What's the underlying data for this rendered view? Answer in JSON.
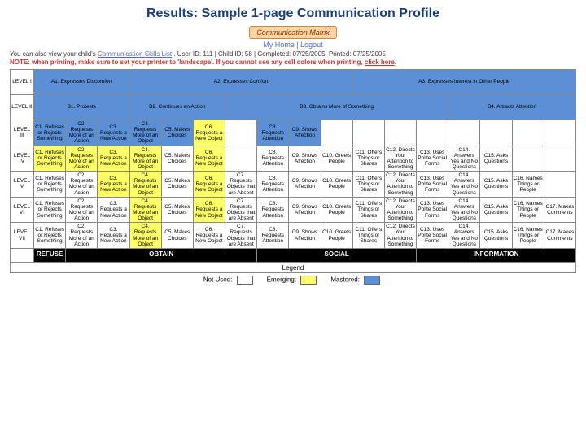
{
  "title": "Results: Sample 1-page Communication Profile",
  "logo": "Communication Matrix",
  "top_links": "My Home | Logout",
  "info_line_prefix": "You can also view your child's ",
  "info_line_link": "Communication Skills List",
  "info_line_suffix": ".  User ID: 111 | Child ID: 58 | Completed: 07/25/2005.  Printed: 07/25/2005",
  "note_prefix": "NOTE: when printing, make sure to set your printer to 'landscape'. If you cannot see any cell colors when printing, ",
  "note_link": "click here",
  "colors": {
    "blue": "#5b8fd6",
    "yellow": "#ffff66",
    "white": "#ffffff",
    "header_bg": "#000000",
    "header_fg": "#ffffff",
    "border": "#888888"
  },
  "row_labels": [
    "LEVEL I",
    "LEVEL II",
    "LEVEL III",
    "LEVEL IV",
    "LEVEL V",
    "LEVEL VI",
    "LEVEL VII"
  ],
  "category_headers": [
    "REFUSE",
    "OBTAIN",
    "SOCIAL",
    "INFORMATION"
  ],
  "category_spans": [
    1,
    6,
    5,
    5
  ],
  "legend_title": "Legend",
  "legend": {
    "not_used": "Not Used:",
    "emerging": "Emerging:",
    "mastered": "Mastered:"
  },
  "cells": {
    "r1": [
      {
        "span": 3,
        "cls": "blue",
        "t": "A1. Expresses Discomfort"
      },
      {
        "span": 7,
        "cls": "blue",
        "t": "A2. Expresses Comfort"
      },
      {
        "span": 7,
        "cls": "blue",
        "t": "A3. Expresses Interest in Other People"
      }
    ],
    "r2": [
      {
        "span": 3,
        "cls": "blue",
        "t": "B1. Protests"
      },
      {
        "span": 3,
        "cls": "blue",
        "t": "B2. Continues an Action"
      },
      {
        "span": 7,
        "cls": "blue",
        "t": "B3. Obtains More of Something"
      },
      {
        "span": 4,
        "cls": "blue",
        "t": "B4. Attracts Attention"
      }
    ],
    "r3": [
      {
        "cls": "blue",
        "t": "C1. Refuses or Rejects Something"
      },
      {
        "cls": "blue",
        "t": "C2. Requests More of an Action"
      },
      {
        "cls": "blue",
        "t": "C3. Requests a New Action"
      },
      {
        "cls": "blue",
        "t": "C4. Requests More of an Object"
      },
      {
        "cls": "blue",
        "t": "C5. Makes Choices"
      },
      {
        "cls": "yellow",
        "t": "C6. Requests a New Object"
      },
      {
        "cls": "empty",
        "t": ""
      },
      {
        "cls": "blue",
        "t": "C8. Requests Attention"
      },
      {
        "cls": "blue",
        "t": "C9. Shows Affection"
      }
    ],
    "r4": [
      {
        "cls": "yellow",
        "t": "C1. Refuses or Rejects Something"
      },
      {
        "cls": "yellow",
        "t": "C2. Requests More of an Action"
      },
      {
        "cls": "yellow",
        "t": "C3. Requests a New Action"
      },
      {
        "cls": "yellow",
        "t": "C4. Requests More of an Object"
      },
      {
        "cls": "white",
        "t": "C5. Makes Choices"
      },
      {
        "cls": "yellow",
        "t": "C6. Requests a New Object"
      },
      {
        "cls": "empty",
        "t": ""
      },
      {
        "cls": "white",
        "t": "C8. Requests Attention"
      },
      {
        "cls": "white",
        "t": "C9. Shows Affection"
      },
      {
        "cls": "white",
        "t": "C10. Greets People"
      },
      {
        "cls": "white",
        "t": "C11. Offers Things or Shares"
      },
      {
        "cls": "white",
        "t": "C12. Directs Your Attention to Something"
      },
      {
        "cls": "white",
        "t": "C13. Uses Polite Social Forms"
      },
      {
        "cls": "white",
        "t": "C14. Answers Yes and No Questions"
      },
      {
        "cls": "white",
        "t": "C15. Asks Questions"
      }
    ],
    "r5": [
      {
        "cls": "white",
        "t": "C1. Refuses or Rejects Something"
      },
      {
        "cls": "white",
        "t": "C2. Requests More of an Action"
      },
      {
        "cls": "yellow",
        "t": "C3. Requests a New Action"
      },
      {
        "cls": "yellow",
        "t": "C4. Requests More of an Object"
      },
      {
        "cls": "white",
        "t": "C5. Makes Choices"
      },
      {
        "cls": "yellow",
        "t": "C6. Requests a New Object"
      },
      {
        "cls": "white",
        "t": "C7. Requests Objects that are Absent"
      },
      {
        "cls": "white",
        "t": "C8. Requests Attention"
      },
      {
        "cls": "white",
        "t": "C9. Shows Affection"
      },
      {
        "cls": "white",
        "t": "C10. Greets People"
      },
      {
        "cls": "white",
        "t": "C11. Offers Things or Shares"
      },
      {
        "cls": "white",
        "t": "C12. Directs Your Attention to Something"
      },
      {
        "cls": "white",
        "t": "C13. Uses Polite Social Forms"
      },
      {
        "cls": "white",
        "t": "C14. Answers Yes and No Questions"
      },
      {
        "cls": "white",
        "t": "C15. Asks Questions"
      },
      {
        "cls": "white",
        "t": "C16. Names Things or People"
      }
    ],
    "r6": [
      {
        "cls": "white",
        "t": "C1. Refuses or Rejects Something"
      },
      {
        "cls": "white",
        "t": "C2. Requests More of an Action"
      },
      {
        "cls": "white",
        "t": "C3. Requests a New Action"
      },
      {
        "cls": "yellow",
        "t": "C4. Requests More of an Object"
      },
      {
        "cls": "white",
        "t": "C5. Makes Choices"
      },
      {
        "cls": "yellow",
        "t": "C6. Requests a New Object"
      },
      {
        "cls": "white",
        "t": "C7. Requests Objects that are Absent"
      },
      {
        "cls": "white",
        "t": "C8. Requests Attention"
      },
      {
        "cls": "white",
        "t": "C9. Shows Affection"
      },
      {
        "cls": "white",
        "t": "C10. Greets People"
      },
      {
        "cls": "white",
        "t": "C11. Offers Things or Shares"
      },
      {
        "cls": "white",
        "t": "C12. Directs Your Attention to Something"
      },
      {
        "cls": "white",
        "t": "C13. Uses Polite Social Forms"
      },
      {
        "cls": "white",
        "t": "C14. Answers Yes and No Questions"
      },
      {
        "cls": "white",
        "t": "C15. Asks Questions"
      },
      {
        "cls": "white",
        "t": "C16. Names Things or People"
      },
      {
        "cls": "white",
        "t": "C17. Makes Comments"
      }
    ],
    "r7": [
      {
        "cls": "white",
        "t": "C1. Refuses or Rejects Something"
      },
      {
        "cls": "white",
        "t": "C2. Requests More of an Action"
      },
      {
        "cls": "white",
        "t": "C3. Requests a New Action"
      },
      {
        "cls": "yellow",
        "t": "C4. Requests More of an Object"
      },
      {
        "cls": "white",
        "t": "C5. Makes Choices"
      },
      {
        "cls": "white",
        "t": "C6. Requests a New Object"
      },
      {
        "cls": "white",
        "t": "C7. Requests Objects that are Absent"
      },
      {
        "cls": "white",
        "t": "C8. Requests Attention"
      },
      {
        "cls": "white",
        "t": "C9. Shows Affection"
      },
      {
        "cls": "white",
        "t": "C10. Greets People"
      },
      {
        "cls": "white",
        "t": "C11. Offers Things or Shares"
      },
      {
        "cls": "white",
        "t": "C12. Directs Your Attention to Something"
      },
      {
        "cls": "white",
        "t": "C13. Uses Polite Social Forms"
      },
      {
        "cls": "white",
        "t": "C14. Answers Yes and No Questions"
      },
      {
        "cls": "white",
        "t": "C15. Asks Questions"
      },
      {
        "cls": "white",
        "t": "C16. Names Things or People"
      },
      {
        "cls": "white",
        "t": "C17. Makes Comments"
      }
    ]
  }
}
